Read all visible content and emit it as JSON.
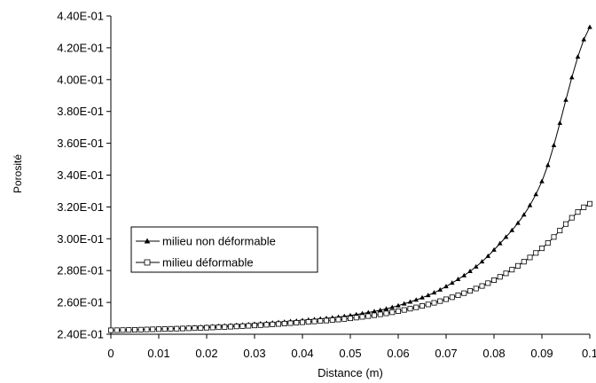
{
  "chart_data": {
    "type": "line",
    "xlabel": "Distance (m)",
    "ylabel": "Porosité",
    "xlim": [
      0,
      0.1
    ],
    "ylim": [
      0.24,
      0.44
    ],
    "x_ticks": [
      0,
      0.01,
      0.02,
      0.03,
      0.04,
      0.05,
      0.06,
      0.07,
      0.08,
      0.09,
      0.1
    ],
    "x_tick_labels": [
      "0",
      "0.01",
      "0.02",
      "0.03",
      "0.04",
      "0.05",
      "0.06",
      "0.07",
      "0.08",
      "0.09",
      "0.1"
    ],
    "y_ticks": [
      0.24,
      0.26,
      0.28,
      0.3,
      0.32,
      0.34,
      0.36,
      0.38,
      0.4,
      0.42,
      0.44
    ],
    "y_tick_labels": [
      "2.40E-01",
      "2.60E-01",
      "2.80E-01",
      "3.00E-01",
      "3.20E-01",
      "3.40E-01",
      "3.60E-01",
      "3.80E-01",
      "4.00E-01",
      "4.20E-01",
      "4.40E-01"
    ],
    "grid": false,
    "legend_position": "center-left",
    "x": [
      0,
      0.01,
      0.02,
      0.03,
      0.04,
      0.05,
      0.06,
      0.07,
      0.08,
      0.09,
      0.1
    ],
    "series": [
      {
        "name": "milieu non déformable",
        "marker": "triangle-filled",
        "color": "#000000",
        "values": [
          0.2425,
          0.2434,
          0.2447,
          0.2464,
          0.2487,
          0.2518,
          0.258,
          0.27,
          0.293,
          0.336,
          0.433
        ]
      },
      {
        "name": "milieu déformable",
        "marker": "square-open",
        "color": "#000000",
        "values": [
          0.2425,
          0.2432,
          0.2441,
          0.2455,
          0.2475,
          0.25,
          0.2545,
          0.262,
          0.274,
          0.294,
          0.322
        ]
      }
    ]
  }
}
